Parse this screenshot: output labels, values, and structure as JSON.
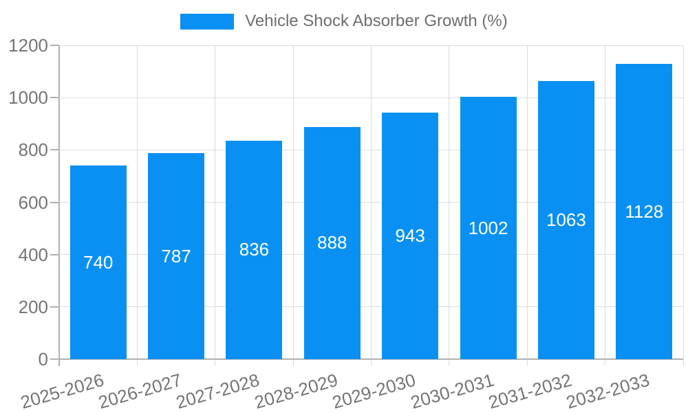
{
  "chart_data": {
    "type": "bar",
    "title": "Vehicle Shock Absorber Growth (%)",
    "legend": {
      "position": "top",
      "entries": [
        "Vehicle Shock Absorber Growth (%)"
      ]
    },
    "categories": [
      "2025-2026",
      "2026-2027",
      "2027-2028",
      "2028-2029",
      "2029-2030",
      "2030-2031",
      "2031-2032",
      "2032-2033"
    ],
    "values": [
      740,
      787,
      836,
      888,
      943,
      1002,
      1063,
      1128
    ],
    "xlabel": "",
    "ylabel": "",
    "ylim": [
      0,
      1200
    ],
    "yticks": [
      0,
      200,
      400,
      600,
      800,
      1000,
      1200
    ],
    "grid": true,
    "x_label_rotation_deg": -16,
    "bar_label_color": "#ffffff",
    "colors": {
      "bar": "#0a90f2",
      "grid_light": "#dcdcdc",
      "axis": "#b0b0b0",
      "tick_text": "#757575",
      "legend_text": "#6e6e6e",
      "background": "#ffffff"
    }
  }
}
